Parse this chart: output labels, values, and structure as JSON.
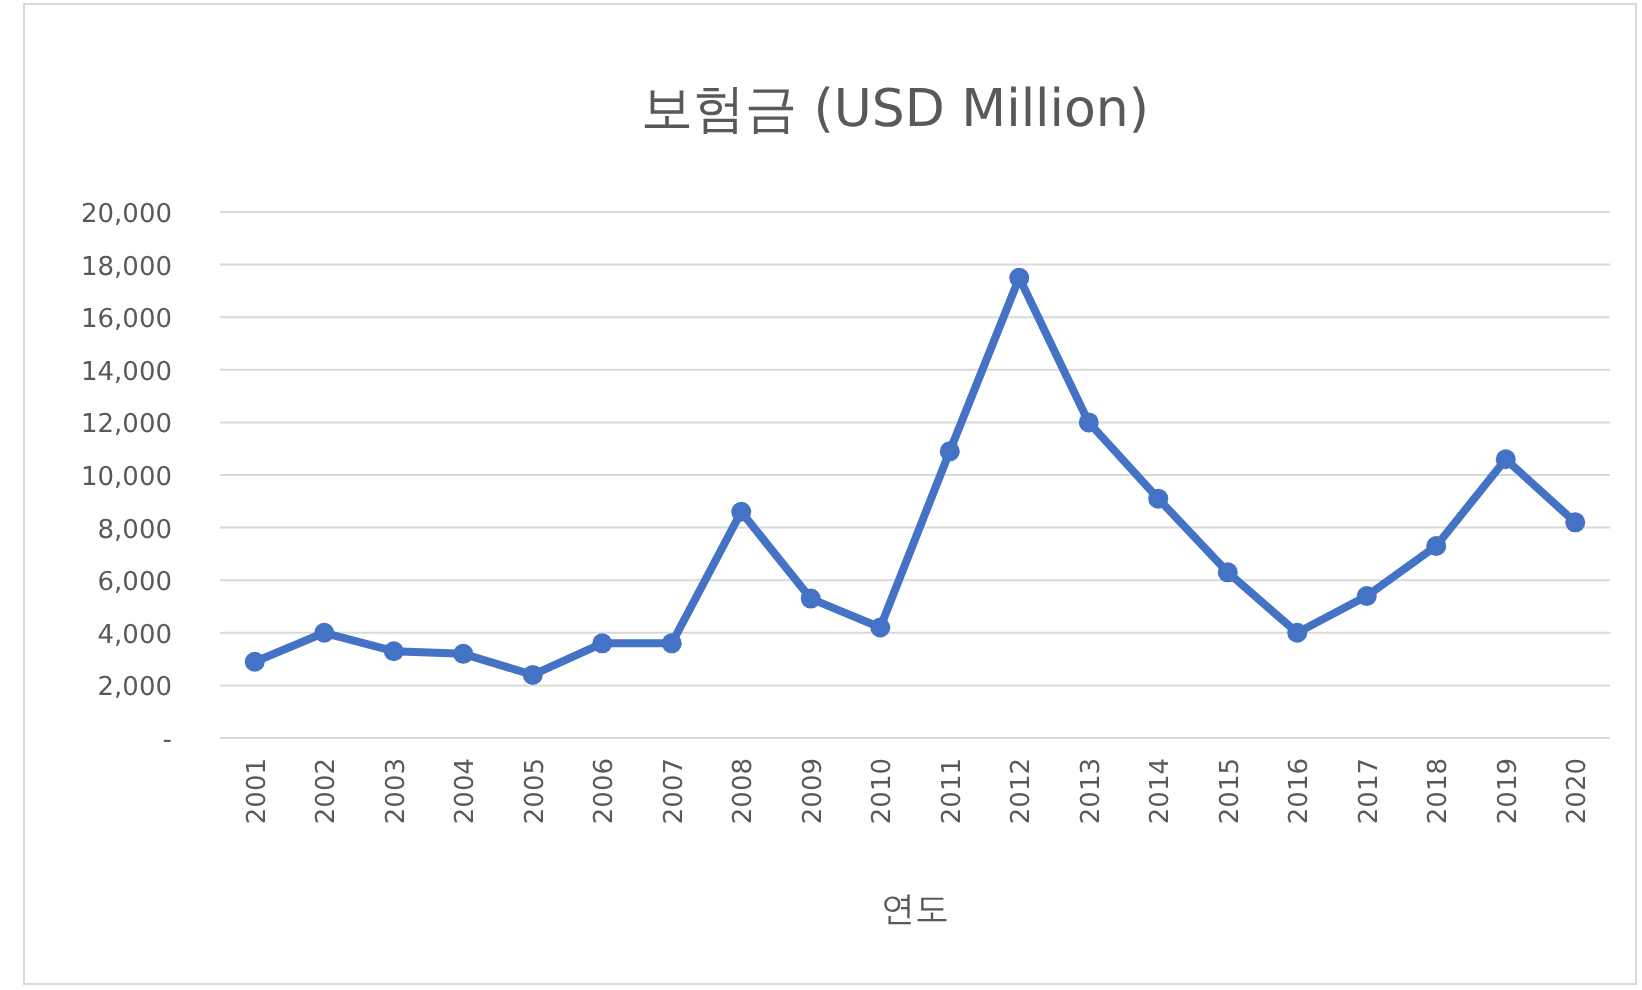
{
  "chart_data": {
    "type": "line",
    "title": "보험금 (USD Million)",
    "xlabel": "연도",
    "categories": [
      "2001",
      "2002",
      "2003",
      "2004",
      "2005",
      "2006",
      "2007",
      "2008",
      "2009",
      "2010",
      "2011",
      "2012",
      "2013",
      "2014",
      "2015",
      "2016",
      "2017",
      "2018",
      "2019",
      "2020"
    ],
    "series": [
      {
        "color": "#4472c4",
        "values": [
          2900,
          4000,
          3300,
          3200,
          2400,
          3600,
          3600,
          8600,
          5300,
          4200,
          10900,
          17500,
          12000,
          9100,
          6300,
          4000,
          5400,
          7300,
          10600,
          8200
        ]
      }
    ],
    "ylim": [
      0,
      20000
    ],
    "yticks": [
      {
        "value": 0,
        "label": "-"
      },
      {
        "value": 2000,
        "label": "2,000"
      },
      {
        "value": 4000,
        "label": "4,000"
      },
      {
        "value": 6000,
        "label": "6,000"
      },
      {
        "value": 8000,
        "label": "8,000"
      },
      {
        "value": 10000,
        "label": "10,000"
      },
      {
        "value": 12000,
        "label": "12,000"
      },
      {
        "value": 14000,
        "label": "14,000"
      },
      {
        "value": 16000,
        "label": "16,000"
      },
      {
        "value": 18000,
        "label": "18,000"
      },
      {
        "value": 20000,
        "label": "20,000"
      }
    ],
    "grid": "y",
    "marker": "circle",
    "line_style": "solid"
  }
}
